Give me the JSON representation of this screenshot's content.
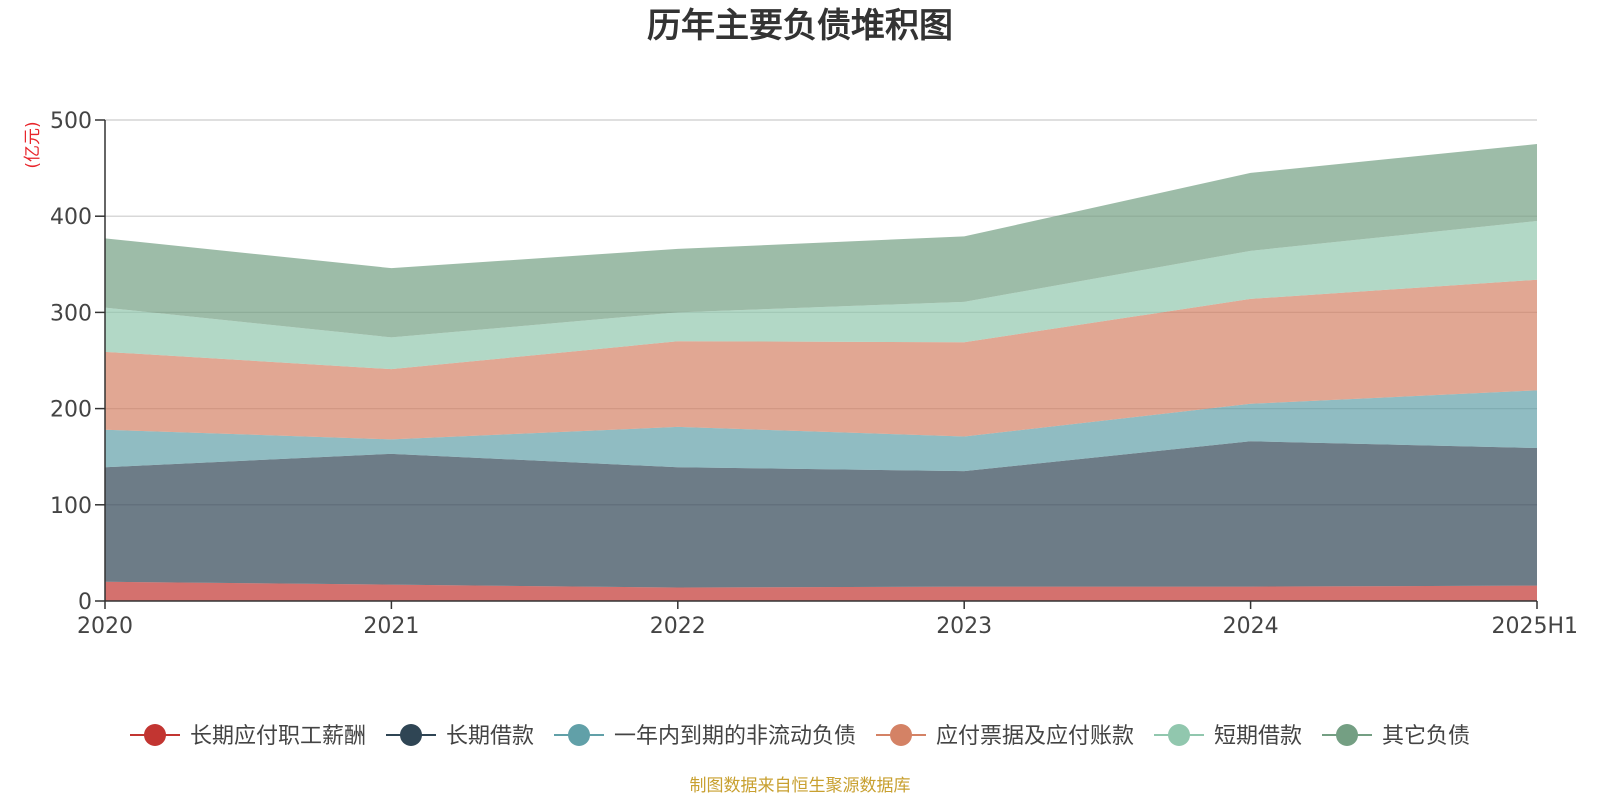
{
  "chart_data": {
    "type": "area",
    "title": "历年主要负债堆积图",
    "ylabel": "(亿元)",
    "categories": [
      "2020",
      "2021",
      "2022",
      "2023",
      "2024",
      "2025H1"
    ],
    "ylim": [
      0,
      500
    ],
    "yticks": [
      0,
      100,
      200,
      300,
      400,
      500
    ],
    "stacked": true,
    "grid": true,
    "legend_position": "bottom",
    "series": [
      {
        "name": "长期应付职工薪酬",
        "color": "#c23531",
        "values": [
          20,
          17,
          14,
          15,
          15,
          16
        ]
      },
      {
        "name": "长期借款",
        "color": "#2f4554",
        "values": [
          119,
          136,
          125,
          120,
          151,
          143
        ]
      },
      {
        "name": "一年内到期的非流动负债",
        "color": "#61a0a8",
        "values": [
          39,
          15,
          42,
          36,
          39,
          60
        ]
      },
      {
        "name": "应付票据及应付账款",
        "color": "#d48265",
        "values": [
          81,
          73,
          89,
          98,
          109,
          115
        ]
      },
      {
        "name": "短期借款",
        "color": "#91c7ae",
        "values": [
          46,
          33,
          30,
          42,
          50,
          61
        ]
      },
      {
        "name": "其它负债",
        "color": "#749f83",
        "values": [
          72,
          72,
          66,
          68,
          81,
          80
        ]
      }
    ],
    "source": "制图数据来自恒生聚源数据库"
  }
}
